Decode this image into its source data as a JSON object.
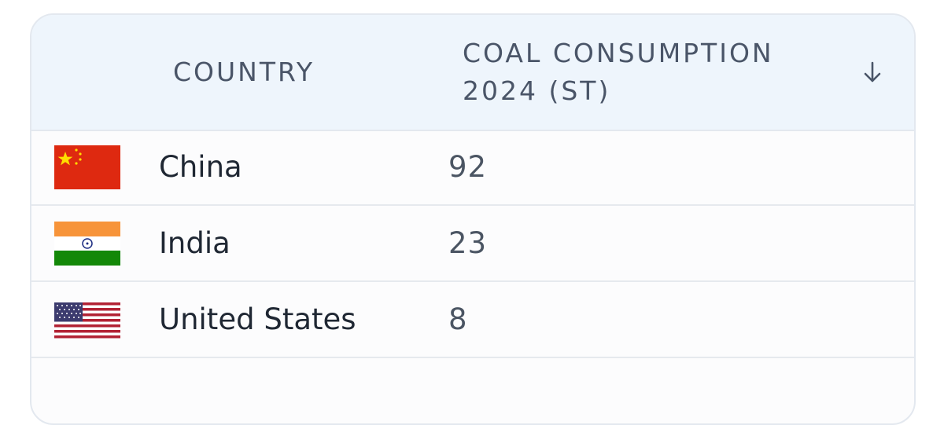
{
  "table": {
    "headers": [
      "COUNTRY",
      "COAL CONSUMPTION 2024 (ST)"
    ],
    "rows": [
      [
        "China",
        92
      ],
      [
        "India",
        23
      ],
      [
        "United States",
        8
      ]
    ]
  }
}
